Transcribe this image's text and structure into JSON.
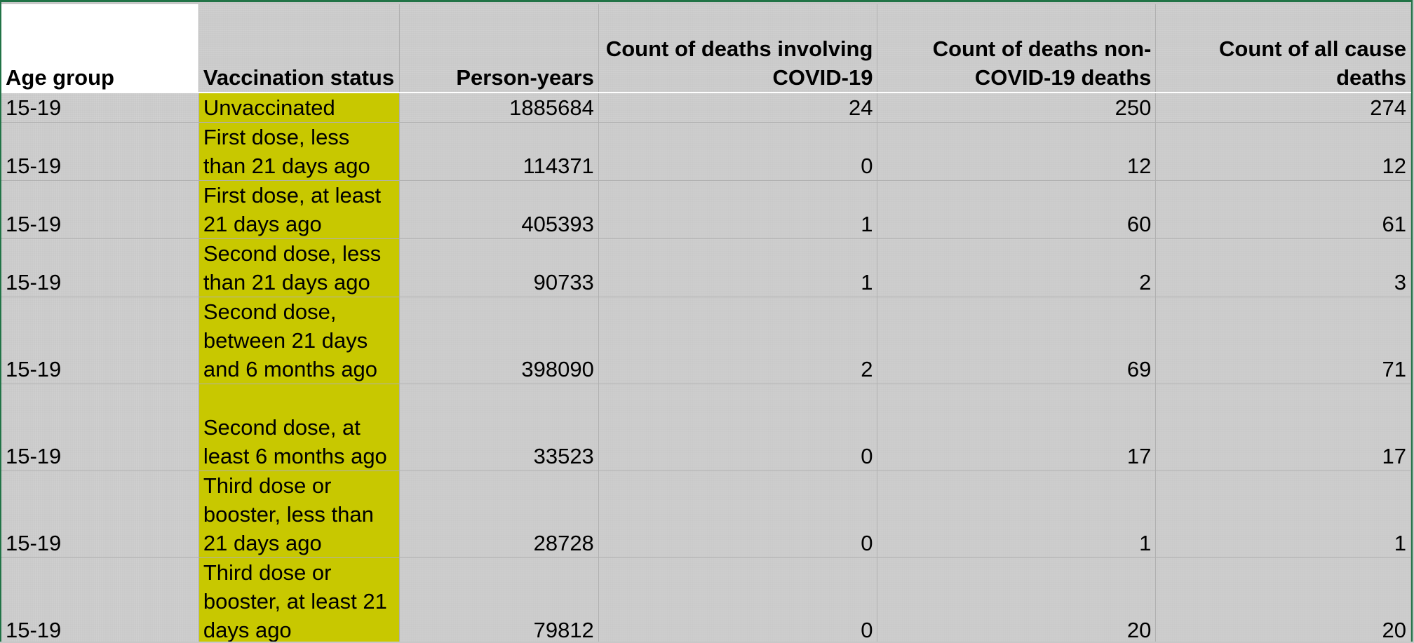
{
  "table": {
    "headers": {
      "age_group": "Age group",
      "vaccination_status": "Vaccination status",
      "person_years": "Person-years",
      "covid_deaths": "Count of deaths involving COVID-19",
      "non_covid_deaths": "Count of deaths non-COVID-19 deaths",
      "all_cause_deaths": "Count of all cause deaths"
    },
    "rows": [
      {
        "age": "15-19",
        "status": "Unvaccinated",
        "person_years": "1885684",
        "covid": "24",
        "non_covid": "250",
        "all_cause": "274"
      },
      {
        "age": "15-19",
        "status": "First dose, less than 21 days ago",
        "person_years": "114371",
        "covid": "0",
        "non_covid": "12",
        "all_cause": "12"
      },
      {
        "age": "15-19",
        "status": "First dose, at least 21 days ago",
        "person_years": "405393",
        "covid": "1",
        "non_covid": "60",
        "all_cause": "61"
      },
      {
        "age": "15-19",
        "status": "Second dose, less than 21 days ago",
        "person_years": "90733",
        "covid": "1",
        "non_covid": "2",
        "all_cause": "3"
      },
      {
        "age": "15-19",
        "status": "Second dose, between 21 days and 6 months ago",
        "person_years": "398090",
        "covid": "2",
        "non_covid": "69",
        "all_cause": "71"
      },
      {
        "age": "15-19",
        "status": "Second dose, at least 6 months ago",
        "person_years": "33523",
        "covid": "0",
        "non_covid": "17",
        "all_cause": "17"
      },
      {
        "age": "15-19",
        "status": "Third dose or booster, less than 21 days ago",
        "person_years": "28728",
        "covid": "0",
        "non_covid": "1",
        "all_cause": "1"
      },
      {
        "age": "15-19",
        "status": "Third dose or booster, at least 21 days ago",
        "person_years": "79812",
        "covid": "0",
        "non_covid": "20",
        "all_cause": "20"
      }
    ]
  },
  "colors": {
    "status_fill": "#c8c800",
    "cell_fill": "#c9c9c9",
    "header_age_fill": "#ffffff",
    "frame": "#217346"
  }
}
